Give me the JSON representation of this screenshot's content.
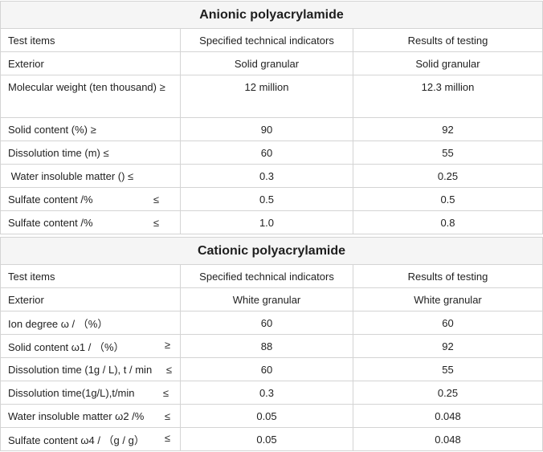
{
  "tables": [
    {
      "title": "Anionic polyacrylamide",
      "rows": [
        {
          "item": "Test items",
          "spec": "Specified technical indicators",
          "result": "Results of testing"
        },
        {
          "item": "Exterior",
          "spec": "Solid granular",
          "result": "Solid granular"
        },
        {
          "item": "Molecular weight (ten thousand) ≥",
          "spec": "12 million",
          "result": "12.3 million"
        },
        {
          "item": "Solid content (%) ≥",
          "spec": "90",
          "result": "92"
        },
        {
          "item": "Dissolution time (m) ≤",
          "spec": "60",
          "result": "55"
        },
        {
          "item": " Water insoluble matter () ≤",
          "spec": "0.3",
          "result": "0.25"
        },
        {
          "item": "Sulfate content /%",
          "sym": "≤",
          "spec": "0.5",
          "result": "0.5"
        },
        {
          "item": "Sulfate content /%",
          "sym": "≤",
          "spec": "1.0",
          "result": "0.8"
        }
      ]
    },
    {
      "title": "Cationic polyacrylamide",
      "rows": [
        {
          "item": "Test items",
          "spec": "Specified technical indicators",
          "result": "Results of testing"
        },
        {
          "item": "Exterior",
          "spec": "White granular",
          "result": "White granular"
        },
        {
          "item": "Ion degree ω / （%）",
          "spec": "60",
          "result": "60"
        },
        {
          "item": "Solid content ω1 / （%）",
          "sym": "≥",
          "spec": "88",
          "result": "92"
        },
        {
          "item": "Dissolution time (1g / L), t / min",
          "sym": "≤",
          "spec": "60",
          "result": "55"
        },
        {
          "item": "Dissolution time(1g/L),t/min",
          "sym": "≤",
          "spec": "0.3",
          "result": "0.25"
        },
        {
          "item": "Water insoluble matter ω2 /%",
          "sym": "≤",
          "spec": "0.05",
          "result": "0.048"
        },
        {
          "item": "Sulfate content ω4 / （g / g）",
          "sym": "≤",
          "spec": "0.05",
          "result": "0.048"
        }
      ]
    }
  ]
}
